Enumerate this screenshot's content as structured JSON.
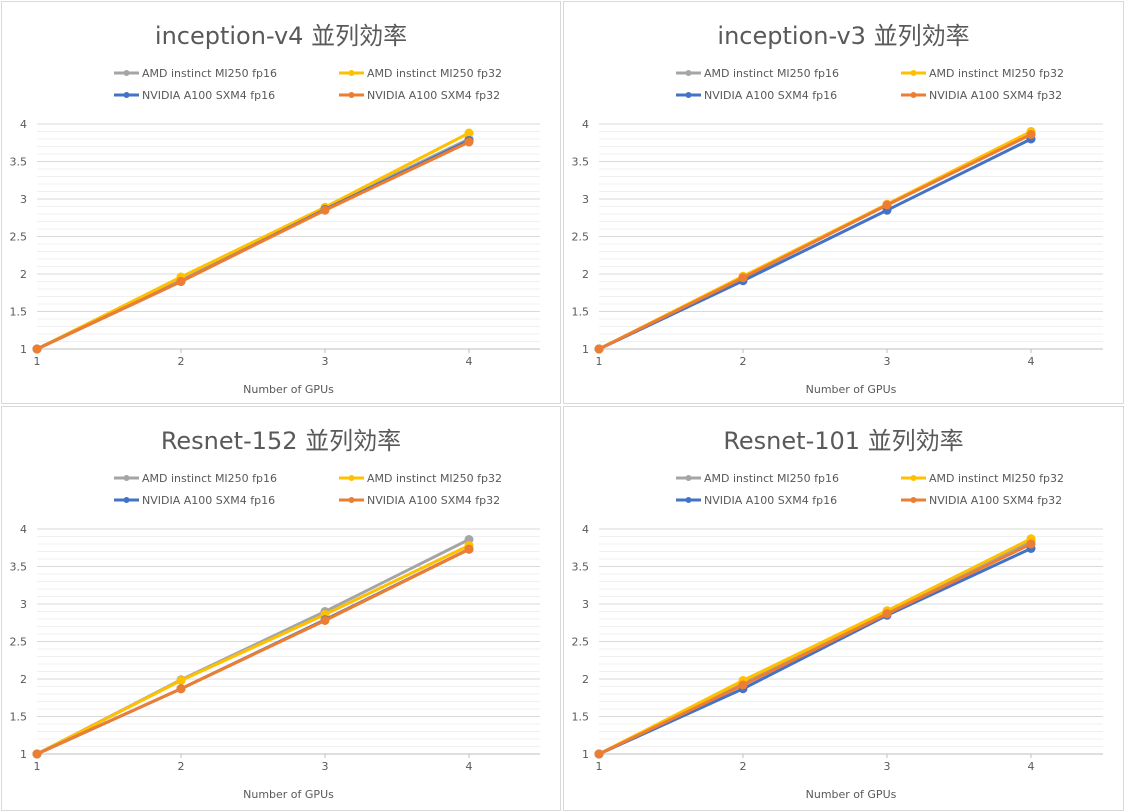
{
  "chart_data": [
    {
      "type": "line",
      "title": "inception-v4 並列効率",
      "xlabel": "Number of GPUs",
      "ylabel": "",
      "x": [
        1,
        2,
        3,
        4
      ],
      "ylim": [
        1,
        4
      ],
      "yticks": [
        1,
        1.5,
        2,
        2.5,
        3,
        3.5,
        4
      ],
      "minor_grid_step": 0.1,
      "legend_position": "top",
      "series": [
        {
          "name": "AMD instinct MI250 fp16",
          "color": "#a5a5a5",
          "values": [
            1,
            1.93,
            2.88,
            3.8
          ]
        },
        {
          "name": "AMD instinct MI250 fp32",
          "color": "#ffc000",
          "values": [
            1,
            1.96,
            2.89,
            3.88
          ]
        },
        {
          "name": "NVIDIA A100 SXM4 fp16",
          "color": "#4472c4",
          "values": [
            1,
            1.9,
            2.86,
            3.78
          ]
        },
        {
          "name": "NVIDIA A100 SXM4 fp32",
          "color": "#ed7d31",
          "values": [
            1,
            1.9,
            2.85,
            3.76
          ]
        }
      ]
    },
    {
      "type": "line",
      "title": "inception-v3 並列効率",
      "xlabel": "Number of GPUs",
      "ylabel": "",
      "x": [
        1,
        2,
        3,
        4
      ],
      "ylim": [
        1,
        4
      ],
      "yticks": [
        1,
        1.5,
        2,
        2.5,
        3,
        3.5,
        4
      ],
      "minor_grid_step": 0.1,
      "legend_position": "top",
      "series": [
        {
          "name": "AMD instinct MI250 fp16",
          "color": "#a5a5a5",
          "values": [
            1,
            1.95,
            2.92,
            3.88
          ]
        },
        {
          "name": "AMD instinct MI250 fp32",
          "color": "#ffc000",
          "values": [
            1,
            1.97,
            2.93,
            3.9
          ]
        },
        {
          "name": "NVIDIA A100 SXM4 fp16",
          "color": "#4472c4",
          "values": [
            1,
            1.91,
            2.85,
            3.8
          ]
        },
        {
          "name": "NVIDIA A100 SXM4 fp32",
          "color": "#ed7d31",
          "values": [
            1,
            1.95,
            2.92,
            3.86
          ]
        }
      ]
    },
    {
      "type": "line",
      "title": "Resnet-152 並列効率",
      "xlabel": "Number of GPUs",
      "ylabel": "",
      "x": [
        1,
        2,
        3,
        4
      ],
      "ylim": [
        1,
        4
      ],
      "yticks": [
        1,
        1.5,
        2,
        2.5,
        3,
        3.5,
        4
      ],
      "minor_grid_step": 0.1,
      "legend_position": "top",
      "series": [
        {
          "name": "AMD instinct MI250 fp16",
          "color": "#a5a5a5",
          "values": [
            1,
            1.99,
            2.9,
            3.86
          ]
        },
        {
          "name": "AMD instinct MI250 fp32",
          "color": "#ffc000",
          "values": [
            1,
            1.98,
            2.86,
            3.78
          ]
        },
        {
          "name": "NVIDIA A100 SXM4 fp16",
          "color": "#4472c4",
          "values": [
            1,
            1.87,
            2.79,
            3.73
          ]
        },
        {
          "name": "NVIDIA A100 SXM4 fp32",
          "color": "#ed7d31",
          "values": [
            1,
            1.87,
            2.78,
            3.73
          ]
        }
      ]
    },
    {
      "type": "line",
      "title": "Resnet-101 並列効率",
      "xlabel": "Number of GPUs",
      "ylabel": "",
      "x": [
        1,
        2,
        3,
        4
      ],
      "ylim": [
        1,
        4
      ],
      "yticks": [
        1,
        1.5,
        2,
        2.5,
        3,
        3.5,
        4
      ],
      "minor_grid_step": 0.1,
      "legend_position": "top",
      "series": [
        {
          "name": "AMD instinct MI250 fp16",
          "color": "#a5a5a5",
          "values": [
            1,
            1.95,
            2.9,
            3.84
          ]
        },
        {
          "name": "AMD instinct MI250 fp32",
          "color": "#ffc000",
          "values": [
            1,
            1.98,
            2.91,
            3.87
          ]
        },
        {
          "name": "NVIDIA A100 SXM4 fp16",
          "color": "#4472c4",
          "values": [
            1,
            1.87,
            2.85,
            3.74
          ]
        },
        {
          "name": "NVIDIA A100 SXM4 fp32",
          "color": "#ed7d31",
          "values": [
            1,
            1.92,
            2.87,
            3.8
          ]
        }
      ]
    }
  ]
}
